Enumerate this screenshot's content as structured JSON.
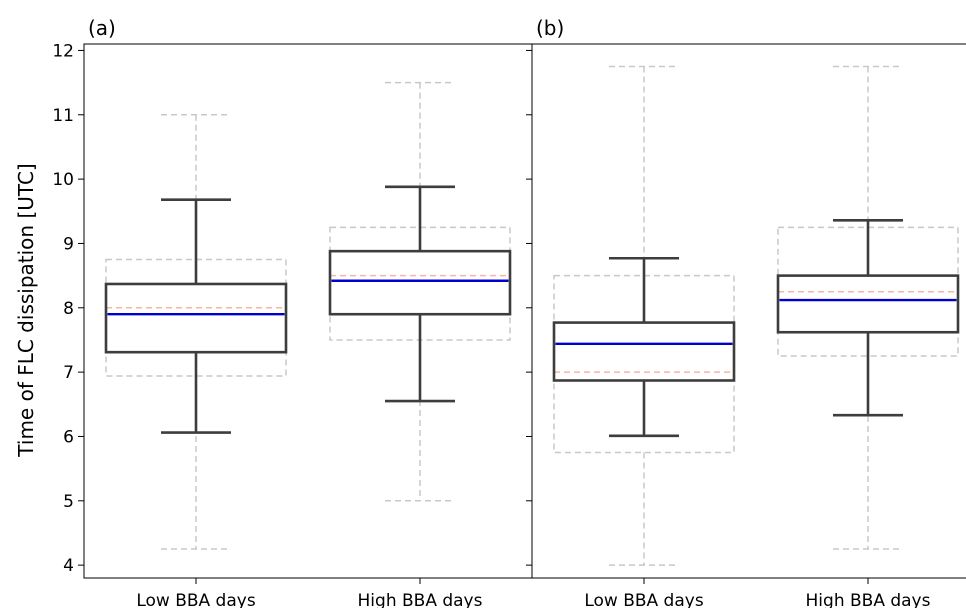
{
  "chart_data": {
    "type": "box",
    "ylabel": "Time of FLC dissipation [UTC]",
    "ylim": [
      3.8,
      12.1
    ],
    "yticks": [
      4,
      5,
      6,
      7,
      8,
      9,
      10,
      11,
      12
    ],
    "categories": [
      "Low BBA days",
      "High BBA days"
    ],
    "colors": {
      "box": "#3d3d3d",
      "median": "#0000cc",
      "ref_box": "#c8c8c8",
      "ref_median": "#f4b6a6"
    },
    "panels": [
      {
        "label": "(a)",
        "boxes": [
          {
            "category": "Low BBA days",
            "whisker_low": 6.06,
            "q1": 7.31,
            "median": 7.9,
            "q3": 8.37,
            "whisker_high": 9.68,
            "ref": {
              "whisker_low": 4.25,
              "q1": 6.94,
              "median": 8.0,
              "q3": 8.75,
              "whisker_high": 11.0
            }
          },
          {
            "category": "High BBA days",
            "whisker_low": 6.55,
            "q1": 7.9,
            "median": 8.42,
            "q3": 8.88,
            "whisker_high": 9.88,
            "ref": {
              "whisker_low": 5.0,
              "q1": 7.5,
              "median": 8.5,
              "q3": 9.25,
              "whisker_high": 11.5
            }
          }
        ]
      },
      {
        "label": "(b)",
        "boxes": [
          {
            "category": "Low BBA days",
            "whisker_low": 6.01,
            "q1": 6.87,
            "median": 7.44,
            "q3": 7.77,
            "whisker_high": 8.77,
            "ref": {
              "whisker_low": 4.0,
              "q1": 5.75,
              "median": 7.0,
              "q3": 8.5,
              "whisker_high": 11.75
            }
          },
          {
            "category": "High BBA days",
            "whisker_low": 6.33,
            "q1": 7.62,
            "median": 8.12,
            "q3": 8.5,
            "whisker_high": 9.36,
            "ref": {
              "whisker_low": 4.25,
              "q1": 7.25,
              "median": 8.25,
              "q3": 9.25,
              "whisker_high": 11.75
            }
          }
        ]
      }
    ]
  }
}
